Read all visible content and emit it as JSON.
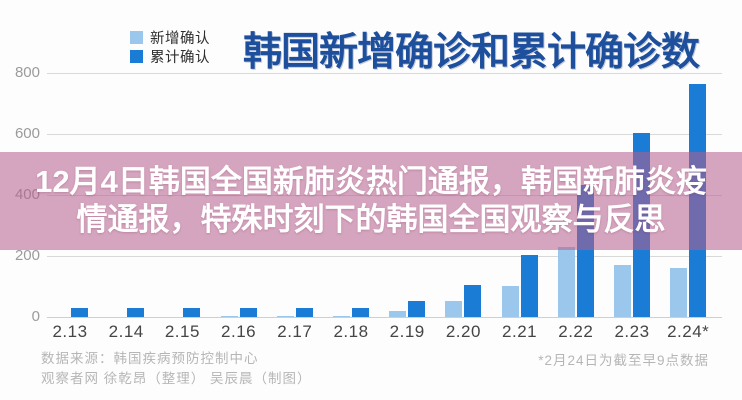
{
  "title": "韩国新增确诊和累计确诊数",
  "legend": {
    "items": [
      {
        "label": "新增确认",
        "color": "#9cc7ec"
      },
      {
        "label": "累计确认",
        "color": "#1b7cd6"
      }
    ]
  },
  "overlay": {
    "line1": "12月4日韩国全国新肺炎热门通报，韩国新肺炎疫",
    "line2": "情通报，特殊时刻下的韩国全国观察与反思"
  },
  "footer": {
    "source": "数据来源：韩国疾病预防控制中心",
    "credits": "观察者网 徐乾昂（整理） 吴辰晨（制图）",
    "note": "*2月24日为截至早9点数据"
  },
  "colors": {
    "title_blue": "#1d4f9c",
    "bar_new": "#9cc7ec",
    "bar_cumulative": "#1b7cd6",
    "banner_pink": "rgba(180,92,140,0.55)",
    "banner_text": "#ffffff",
    "gridline": "#d9d9d9"
  },
  "chart_data": {
    "type": "bar",
    "categories": [
      "2.13",
      "2.14",
      "2.15",
      "2.16",
      "2.17",
      "2.18",
      "2.19",
      "2.20",
      "2.21",
      "2.22",
      "2.23",
      "2.24*"
    ],
    "series": [
      {
        "name": "新增确认",
        "color": "#9cc7ec",
        "values": [
          0,
          0,
          0,
          1,
          1,
          1,
          20,
          53,
          100,
          229,
          169,
          161
        ]
      },
      {
        "name": "累计确认",
        "color": "#1b7cd6",
        "values": [
          28,
          28,
          28,
          29,
          30,
          31,
          51,
          104,
          204,
          433,
          602,
          763
        ]
      }
    ],
    "title": "韩国新增确诊和累计确诊数",
    "xlabel": "",
    "ylabel": "",
    "ylim": [
      0,
      800
    ],
    "yticks": [
      800,
      600,
      400,
      200,
      0
    ],
    "grid": true,
    "legend_position": "top-left"
  }
}
